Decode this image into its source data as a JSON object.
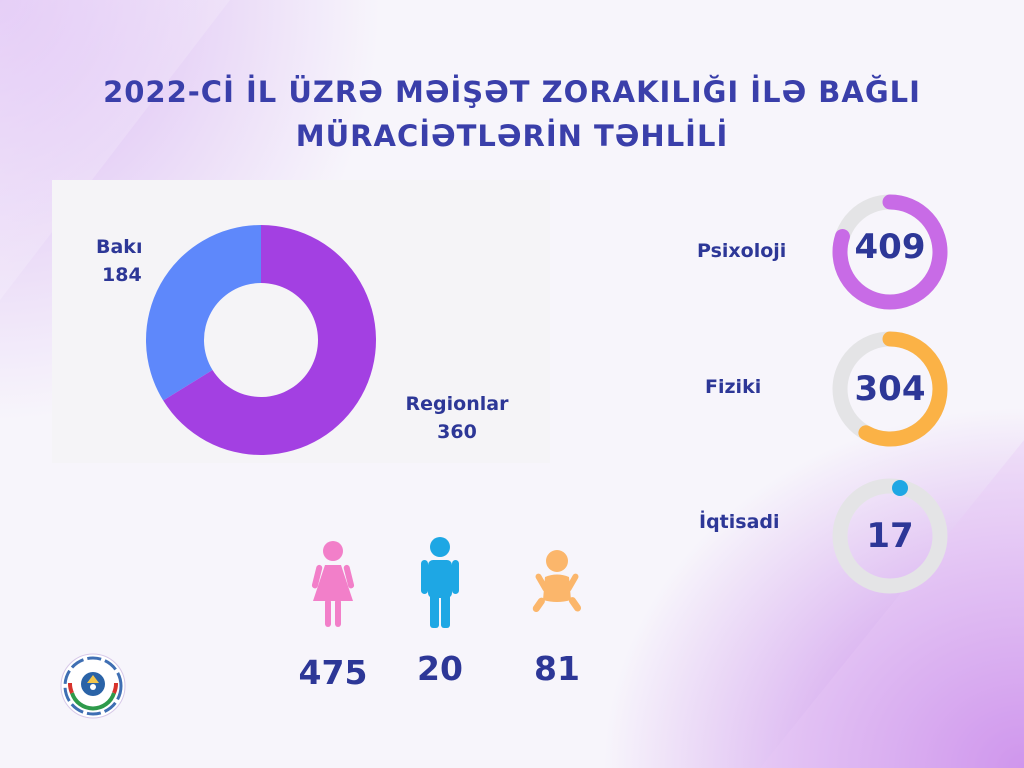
{
  "title": {
    "line1": "2022-Cİ İL ÜZRƏ MƏİŞƏT ZORAKILIĞI İLƏ BAĞLI",
    "line2": "MÜRACİƏTLƏRİN TƏHLİLİ"
  },
  "colors": {
    "title": "#3a3faa",
    "label": "#2d3797",
    "baku": "#5e88fb",
    "regions": "#a340e2",
    "psychological": "#c86be6",
    "physical": "#fbb246",
    "economic": "#1ea7e4",
    "ring_track": "#e4e4e6",
    "woman": "#f27fc9",
    "man": "#1ea7e4",
    "child": "#fbb66b"
  },
  "chart_data": [
    {
      "type": "pie",
      "labels": [
        "Bakı",
        "Regionlar"
      ],
      "values": [
        184,
        360
      ],
      "donut": true
    },
    {
      "type": "bar",
      "categories": [
        "Psixoloji",
        "Fiziki",
        "İqtisadi"
      ],
      "values": [
        409,
        304,
        17
      ],
      "display": "progress-rings"
    },
    {
      "type": "bar",
      "categories": [
        "woman-icon",
        "man-icon",
        "child-icon"
      ],
      "values": [
        475,
        20,
        81
      ],
      "display": "pictogram"
    }
  ],
  "donut": {
    "baku": {
      "label": "Bakı",
      "value": "184"
    },
    "regions": {
      "label": "Regionlar",
      "value": "360"
    }
  },
  "types": [
    {
      "label": "Psixoloji",
      "value": "409",
      "fraction": 0.8
    },
    {
      "label": "Fiziki",
      "value": "304",
      "fraction": 0.58
    },
    {
      "label": "İqtisadi",
      "value": "17",
      "fraction": 0.0
    }
  ],
  "people": [
    {
      "icon": "woman-icon",
      "value": "475"
    },
    {
      "icon": "man-icon",
      "value": "20"
    },
    {
      "icon": "child-icon",
      "value": "81"
    }
  ],
  "logo": {
    "icon": "emblem-logo-icon"
  }
}
